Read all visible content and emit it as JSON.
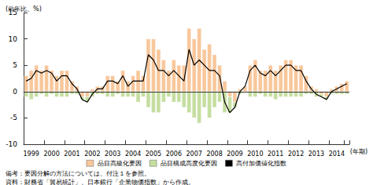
{
  "chart_data": {
    "type": "bar",
    "ylabel": "(前年比、%)",
    "xlabel": "(年期)",
    "annotations": [
      "備考：要因分解の方法については、付注１を参照。",
      "資料：財務省「貿易統計」、日本銀行「企業物価指数」から作成。"
    ],
    "categories": [
      null,
      "1999",
      null,
      null,
      null,
      "2000",
      null,
      null,
      null,
      "2001",
      null,
      null,
      null,
      "2002",
      null,
      null,
      null,
      "2003",
      null,
      null,
      null,
      "2004",
      null,
      null,
      null,
      "2005",
      null,
      null,
      null,
      "2006",
      null,
      null,
      null,
      "2007",
      null,
      null,
      null,
      "2008",
      null,
      null,
      null,
      "2009",
      null,
      null,
      null,
      "2010",
      null,
      null,
      null,
      "2011",
      null,
      null,
      null,
      "2012",
      null,
      null,
      null,
      "2013",
      null,
      null,
      null,
      "2014",
      null,
      null
    ],
    "stacked": true,
    "grid": false,
    "legend": "bottom",
    "ylim": [
      -10,
      15
    ],
    "yticks": [
      -10,
      -5,
      0,
      5,
      10,
      15
    ],
    "series": [
      {
        "name": "品目高級化要因",
        "type": "bar",
        "color": "#f8c79b",
        "values": [
          3,
          4,
          5,
          4,
          5,
          4,
          3,
          4,
          4,
          2,
          1,
          -1,
          -1,
          0.5,
          1,
          1,
          3,
          3,
          2,
          4,
          2,
          3,
          4,
          3,
          10,
          10,
          8,
          6,
          4,
          6,
          5,
          5,
          12,
          10,
          12,
          8,
          9,
          7,
          5,
          2,
          -1,
          -2,
          0.5,
          1,
          5,
          6,
          4,
          4,
          5,
          4,
          5,
          6,
          6,
          5,
          5,
          3,
          1,
          0.5,
          -0.5,
          -1,
          0.5,
          1,
          1.5,
          2
        ]
      },
      {
        "name": "品目構成高度化要因",
        "type": "bar",
        "color": "#c5dea0",
        "values": [
          -1,
          -1.5,
          -1,
          -0.5,
          -1,
          -0.5,
          -1,
          -1,
          -1,
          -0.5,
          -0.5,
          -0.5,
          -1,
          -1,
          -0.5,
          -0.5,
          -1,
          -1,
          -0.5,
          -1,
          -1,
          -1,
          -2,
          -1,
          -3,
          -4,
          -4,
          -2,
          -1,
          -2,
          -2,
          -3,
          -4,
          -5,
          -6,
          -3,
          -5,
          -3,
          -2,
          -4,
          -3,
          -1,
          -0.5,
          0,
          -1,
          -1,
          -0.5,
          -1,
          -1,
          -1.5,
          -1,
          -1,
          -1,
          -1,
          -1,
          -0.5,
          -0.5,
          -1,
          -0.5,
          -0.5,
          -0.5,
          -0.5,
          -0.5,
          -0.5
        ]
      },
      {
        "name": "高付加価値化指数",
        "type": "line",
        "color": "#000000",
        "values": [
          2,
          2.5,
          4,
          3.5,
          4,
          3.5,
          2,
          3,
          3,
          1.5,
          0.5,
          -1.5,
          -2,
          -0.5,
          0.5,
          0.5,
          2,
          2,
          1.5,
          3,
          1,
          2,
          2,
          2,
          7,
          6,
          4,
          4,
          3,
          4,
          3,
          2,
          8,
          5,
          6,
          5,
          4,
          4,
          3,
          -2,
          -4,
          -3,
          0,
          1,
          4,
          5,
          3.5,
          3,
          4,
          3,
          4,
          5,
          5,
          4,
          4,
          2,
          0.5,
          -0.5,
          -1,
          -1.5,
          0,
          0.5,
          1,
          1.5
        ]
      }
    ]
  }
}
